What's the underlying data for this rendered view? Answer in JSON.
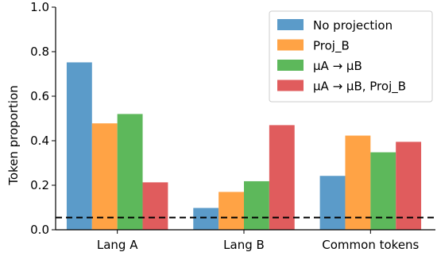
{
  "chart_data": {
    "type": "bar",
    "categories": [
      "Lang A",
      "Lang B",
      "Common tokens"
    ],
    "ylabel": "Token proportion",
    "ylim": [
      0,
      1.0
    ],
    "yticks": [
      "0.0",
      "0.2",
      "0.4",
      "0.6",
      "0.8",
      "1.0"
    ],
    "legend_position": "top-right",
    "reference_line": {
      "y": 0.055,
      "style": "dashed"
    },
    "series": [
      {
        "name": "No projection",
        "color": "#5b9bc9",
        "values": [
          0.752,
          0.098,
          0.242
        ]
      },
      {
        "name": "Proj_B",
        "color": "#ffa345",
        "values": [
          0.478,
          0.17,
          0.423
        ]
      },
      {
        "name": "μA → μB",
        "color": "#5db85b",
        "values": [
          0.52,
          0.218,
          0.348
        ]
      },
      {
        "name": "μA → μB, Proj_B",
        "color": "#e05c5d",
        "values": [
          0.213,
          0.47,
          0.395
        ]
      }
    ]
  }
}
